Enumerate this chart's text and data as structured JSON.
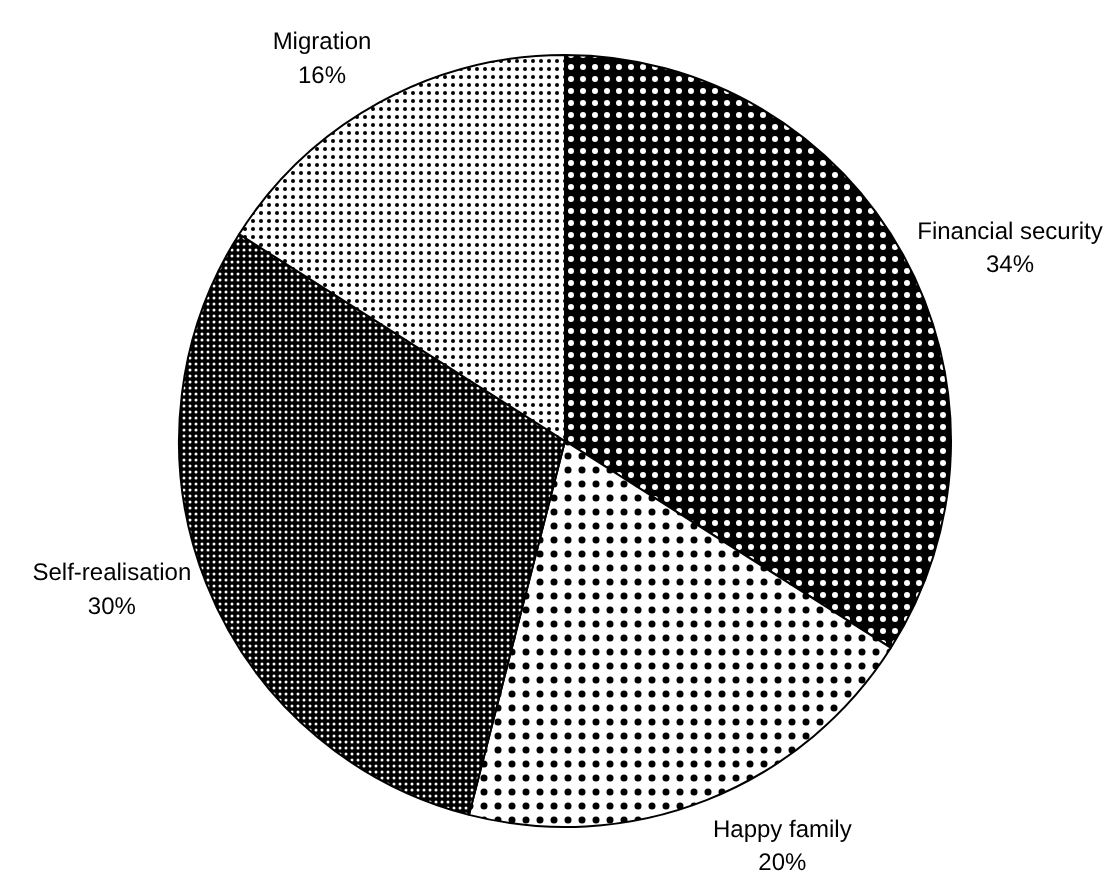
{
  "chart_data": {
    "type": "pie",
    "categories": [
      "Financial security",
      "Happy family",
      "Self-realisation",
      "Migration"
    ],
    "values": [
      34,
      20,
      30,
      16
    ],
    "value_labels": [
      "34%",
      "20%",
      "30%",
      "16%"
    ],
    "colors": [
      "#000000",
      "#ffffff",
      "#000000",
      "#ffffff"
    ]
  }
}
